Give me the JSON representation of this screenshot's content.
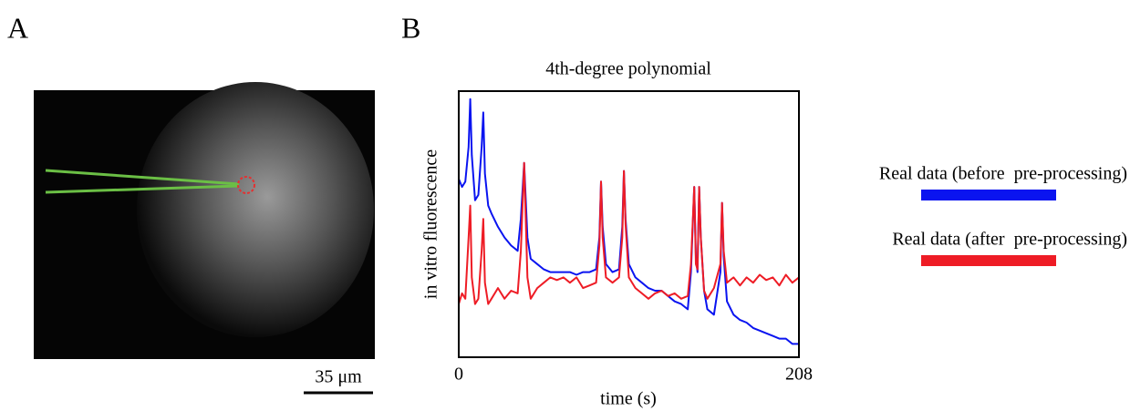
{
  "panels": {
    "a": "A",
    "b": "B"
  },
  "scale_bar": "35 μm",
  "chart_data": {
    "type": "line",
    "title": "4th-degree polynomial",
    "x_label": "time (s)",
    "y_label": "in vitro fluorescence",
    "xlim": [
      0,
      208
    ],
    "xticks": [
      0,
      208
    ],
    "ylim": [
      0,
      1
    ],
    "x": [
      0,
      2,
      4,
      6,
      7,
      8,
      10,
      12,
      14,
      15,
      16,
      18,
      20,
      24,
      28,
      32,
      36,
      38,
      40,
      42,
      44,
      48,
      52,
      56,
      60,
      64,
      68,
      72,
      76,
      80,
      84,
      86,
      87,
      88,
      90,
      94,
      98,
      100,
      101,
      102,
      104,
      108,
      112,
      116,
      120,
      124,
      128,
      132,
      136,
      140,
      142,
      144,
      145,
      146,
      147,
      148,
      150,
      152,
      156,
      160,
      161,
      162,
      164,
      168,
      172,
      176,
      180,
      184,
      188,
      192,
      196,
      200,
      204,
      208
    ],
    "series": [
      {
        "name": "Real data (before  pre-processing)",
        "color": "#0a14f0",
        "values": [
          0.67,
          0.64,
          0.66,
          0.79,
          0.97,
          0.76,
          0.59,
          0.61,
          0.79,
          0.92,
          0.69,
          0.57,
          0.54,
          0.49,
          0.45,
          0.42,
          0.4,
          0.52,
          0.73,
          0.45,
          0.37,
          0.35,
          0.33,
          0.32,
          0.32,
          0.32,
          0.32,
          0.31,
          0.32,
          0.32,
          0.33,
          0.45,
          0.66,
          0.49,
          0.35,
          0.32,
          0.33,
          0.49,
          0.7,
          0.52,
          0.35,
          0.3,
          0.28,
          0.26,
          0.25,
          0.25,
          0.23,
          0.21,
          0.2,
          0.18,
          0.32,
          0.64,
          0.38,
          0.32,
          0.64,
          0.45,
          0.25,
          0.18,
          0.16,
          0.32,
          0.58,
          0.38,
          0.21,
          0.16,
          0.14,
          0.13,
          0.11,
          0.1,
          0.09,
          0.08,
          0.07,
          0.07,
          0.05,
          0.05
        ]
      },
      {
        "name": "Real data (after  pre-processing)",
        "color": "#ee1c25",
        "values": [
          0.2,
          0.24,
          0.22,
          0.45,
          0.57,
          0.3,
          0.2,
          0.22,
          0.4,
          0.52,
          0.28,
          0.2,
          0.22,
          0.26,
          0.22,
          0.25,
          0.24,
          0.4,
          0.73,
          0.3,
          0.22,
          0.26,
          0.28,
          0.3,
          0.29,
          0.3,
          0.28,
          0.3,
          0.26,
          0.27,
          0.28,
          0.42,
          0.66,
          0.45,
          0.3,
          0.28,
          0.3,
          0.45,
          0.7,
          0.5,
          0.3,
          0.26,
          0.24,
          0.22,
          0.24,
          0.25,
          0.23,
          0.24,
          0.22,
          0.23,
          0.35,
          0.64,
          0.35,
          0.33,
          0.64,
          0.45,
          0.25,
          0.22,
          0.26,
          0.35,
          0.58,
          0.4,
          0.28,
          0.3,
          0.27,
          0.3,
          0.28,
          0.31,
          0.29,
          0.3,
          0.27,
          0.31,
          0.28,
          0.3
        ]
      }
    ]
  }
}
